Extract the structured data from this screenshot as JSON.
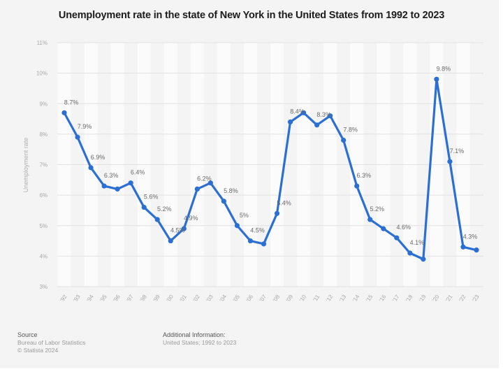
{
  "title": "Unemployment rate in the state of New York in the United States from 1992 to 2023",
  "chart_data": {
    "type": "line",
    "title": "Unemployment rate in the state of New York in the United States from 1992 to 2023",
    "xlabel": "",
    "ylabel": "Unemployment rate",
    "ylim": [
      3,
      11
    ],
    "yticks": [
      3,
      4,
      5,
      6,
      7,
      8,
      9,
      10,
      11
    ],
    "ytick_labels": [
      "3%",
      "4%",
      "5%",
      "6%",
      "7%",
      "8%",
      "9%",
      "10%",
      "11%"
    ],
    "grid": true,
    "legend": "none",
    "categories": [
      "'92",
      "'93",
      "'94",
      "'95",
      "'96",
      "'97",
      "'98",
      "'99",
      "'00",
      "'01",
      "'02",
      "'03",
      "'04",
      "'05",
      "'06",
      "'07",
      "'08",
      "'09",
      "'10",
      "'11",
      "'12",
      "'13",
      "'14",
      "'15",
      "'16",
      "'17",
      "'18",
      "'19",
      "'20",
      "'21",
      "'22",
      "'23"
    ],
    "series": [
      {
        "name": "Unemployment rate",
        "color": "#2b6fd4",
        "values": [
          8.7,
          7.9,
          6.9,
          6.3,
          6.2,
          6.4,
          5.6,
          5.2,
          4.5,
          4.9,
          6.2,
          6.4,
          5.8,
          5.0,
          4.5,
          4.4,
          5.4,
          8.4,
          8.7,
          8.3,
          8.6,
          7.8,
          6.3,
          5.2,
          4.9,
          4.6,
          4.1,
          3.9,
          9.8,
          7.1,
          4.3,
          4.2
        ],
        "data_labels": [
          "8.7%",
          "7.9%",
          "6.9%",
          "6.3%",
          "",
          "6.4%",
          "5.6%",
          "5.2%",
          "4.5%",
          "4.9%",
          "6.2%",
          "",
          "5.8%",
          "5%",
          "4.5%",
          "",
          "5.4%",
          "8.4%",
          "",
          "8.3%",
          "",
          "7.8%",
          "6.3%",
          "5.2%",
          "",
          "4.6%",
          "4.1%",
          "",
          "9.8%",
          "7.1%",
          "4.3%",
          ""
        ]
      }
    ]
  },
  "footer": {
    "source_heading": "Source",
    "source_lines": [
      "Bureau of Labor Statistics",
      "© Statista 2024"
    ],
    "info_heading": "Additional Information:",
    "info_lines": [
      "United States; 1992 to 2023"
    ]
  }
}
